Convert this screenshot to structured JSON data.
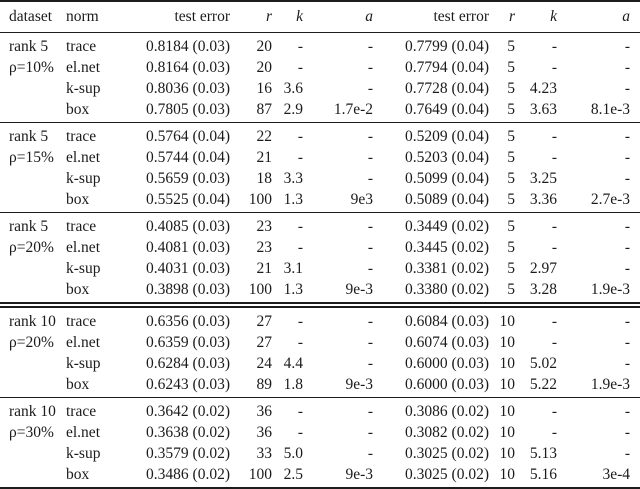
{
  "page": {
    "background_color": "#ffffff",
    "text_color": "#1b1b1b",
    "rule_color": "#1c1c1c"
  },
  "table": {
    "headers": [
      "dataset",
      "norm",
      "test error",
      "r",
      "k",
      "a",
      "test error",
      "r",
      "k",
      "a"
    ],
    "blocks": [
      {
        "id": "rank5-rho10",
        "dataset_label": [
          "rank 5",
          "ρ=10%"
        ],
        "double_rule_above": false,
        "rows": [
          {
            "norm": "trace",
            "te1": "0.8184 (0.03)",
            "r1": "20",
            "k1": "-",
            "a1": "-",
            "te2": "0.7799 (0.04)",
            "r2": "5",
            "k2": "-",
            "a2": "-"
          },
          {
            "norm": "el.net",
            "te1": "0.8164 (0.03)",
            "r1": "20",
            "k1": "-",
            "a1": "-",
            "te2": "0.7794 (0.04)",
            "r2": "5",
            "k2": "-",
            "a2": "-"
          },
          {
            "norm": "k-sup",
            "te1": "0.8036 (0.03)",
            "r1": "16",
            "k1": "3.6",
            "a1": "-",
            "te2": "0.7728 (0.04)",
            "r2": "5",
            "k2": "4.23",
            "a2": "-"
          },
          {
            "norm": "box",
            "te1": "0.7805 (0.03)",
            "r1": "87",
            "k1": "2.9",
            "a1": "1.7e-2",
            "te2": "0.7649 (0.04)",
            "r2": "5",
            "k2": "3.63",
            "a2": "8.1e-3"
          }
        ]
      },
      {
        "id": "rank5-rho15",
        "dataset_label": [
          "rank 5",
          "ρ=15%"
        ],
        "double_rule_above": false,
        "rows": [
          {
            "norm": "trace",
            "te1": "0.5764 (0.04)",
            "r1": "22",
            "k1": "-",
            "a1": "-",
            "te2": "0.5209 (0.04)",
            "r2": "5",
            "k2": "-",
            "a2": "-"
          },
          {
            "norm": "el.net",
            "te1": "0.5744 (0.04)",
            "r1": "21",
            "k1": "-",
            "a1": "-",
            "te2": "0.5203 (0.04)",
            "r2": "5",
            "k2": "-",
            "a2": "-"
          },
          {
            "norm": "k-sup",
            "te1": "0.5659 (0.03)",
            "r1": "18",
            "k1": "3.3",
            "a1": "-",
            "te2": "0.5099 (0.04)",
            "r2": "5",
            "k2": "3.25",
            "a2": "-"
          },
          {
            "norm": "box",
            "te1": "0.5525 (0.04)",
            "r1": "100",
            "k1": "1.3",
            "a1": "9e3",
            "te2": "0.5089 (0.04)",
            "r2": "5",
            "k2": "3.36",
            "a2": "2.7e-3"
          }
        ]
      },
      {
        "id": "rank5-rho20",
        "dataset_label": [
          "rank 5",
          "ρ=20%"
        ],
        "double_rule_above": false,
        "rows": [
          {
            "norm": "trace",
            "te1": "0.4085 (0.03)",
            "r1": "23",
            "k1": "-",
            "a1": "-",
            "te2": "0.3449 (0.02)",
            "r2": "5",
            "k2": "-",
            "a2": "-"
          },
          {
            "norm": "el.net",
            "te1": "0.4081 (0.03)",
            "r1": "23",
            "k1": "-",
            "a1": "-",
            "te2": "0.3445 (0.02)",
            "r2": "5",
            "k2": "-",
            "a2": "-"
          },
          {
            "norm": "k-sup",
            "te1": "0.4031 (0.03)",
            "r1": "21",
            "k1": "3.1",
            "a1": "-",
            "te2": "0.3381 (0.02)",
            "r2": "5",
            "k2": "2.97",
            "a2": "-"
          },
          {
            "norm": "box",
            "te1": "0.3898 (0.03)",
            "r1": "100",
            "k1": "1.3",
            "a1": "9e-3",
            "te2": "0.3380 (0.02)",
            "r2": "5",
            "k2": "3.28",
            "a2": "1.9e-3"
          }
        ]
      },
      {
        "id": "rank10-rho20",
        "dataset_label": [
          "rank 10",
          "ρ=20%"
        ],
        "double_rule_above": true,
        "rows": [
          {
            "norm": "trace",
            "te1": "0.6356 (0.03)",
            "r1": "27",
            "k1": "-",
            "a1": "-",
            "te2": "0.6084 (0.03)",
            "r2": "10",
            "k2": "-",
            "a2": "-"
          },
          {
            "norm": "el.net",
            "te1": "0.6359 (0.03)",
            "r1": "27",
            "k1": "-",
            "a1": "-",
            "te2": "0.6074 (0.03)",
            "r2": "10",
            "k2": "-",
            "a2": "-"
          },
          {
            "norm": "k-sup",
            "te1": "0.6284 (0.03)",
            "r1": "24",
            "k1": "4.4",
            "a1": "-",
            "te2": "0.6000 (0.03)",
            "r2": "10",
            "k2": "5.02",
            "a2": "-"
          },
          {
            "norm": "box",
            "te1": "0.6243 (0.03)",
            "r1": "89",
            "k1": "1.8",
            "a1": "9e-3",
            "te2": "0.6000 (0.03)",
            "r2": "10",
            "k2": "5.22",
            "a2": "1.9e-3"
          }
        ]
      },
      {
        "id": "rank10-rho30",
        "dataset_label": [
          "rank 10",
          "ρ=30%"
        ],
        "double_rule_above": false,
        "rows": [
          {
            "norm": "trace",
            "te1": "0.3642 (0.02)",
            "r1": "36",
            "k1": "-",
            "a1": "-",
            "te2": "0.3086 (0.02)",
            "r2": "10",
            "k2": "-",
            "a2": "-"
          },
          {
            "norm": "el.net",
            "te1": "0.3638 (0.02)",
            "r1": "36",
            "k1": "-",
            "a1": "-",
            "te2": "0.3082 (0.02)",
            "r2": "10",
            "k2": "-",
            "a2": "-"
          },
          {
            "norm": "k-sup",
            "te1": "0.3579 (0.02)",
            "r1": "33",
            "k1": "5.0",
            "a1": "-",
            "te2": "0.3025 (0.02)",
            "r2": "10",
            "k2": "5.13",
            "a2": "-"
          },
          {
            "norm": "box",
            "te1": "0.3486 (0.02)",
            "r1": "100",
            "k1": "2.5",
            "a1": "9e-3",
            "te2": "0.3025 (0.02)",
            "r2": "10",
            "k2": "5.16",
            "a2": "3e-4"
          }
        ]
      }
    ]
  }
}
